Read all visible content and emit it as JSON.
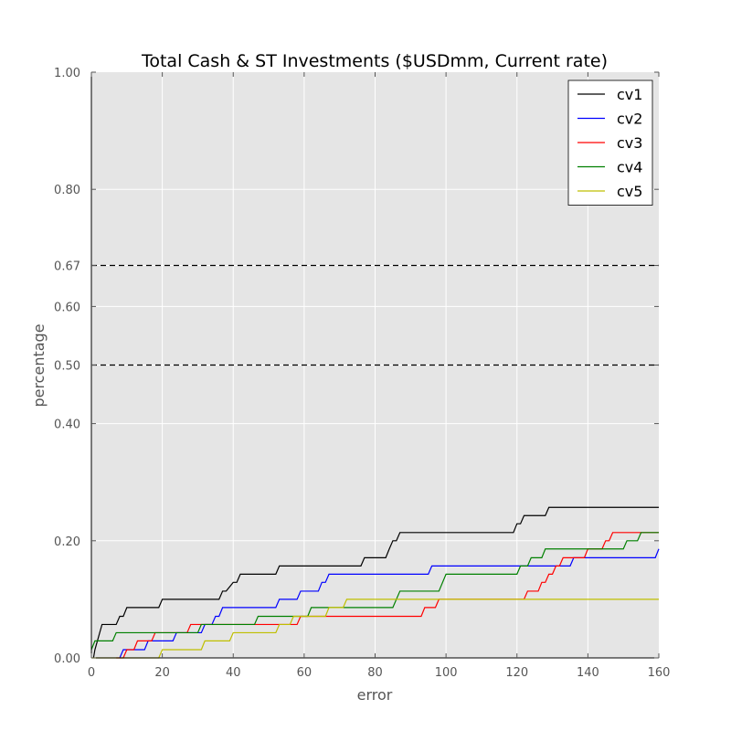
{
  "chart_data": {
    "type": "line",
    "title": "Total Cash & ST Investments  ($USDmm, Current rate)",
    "xlabel": "error",
    "ylabel": "percentage",
    "xlim": [
      0,
      160
    ],
    "ylim": [
      0.0,
      1.0
    ],
    "xticks": [
      0,
      20,
      40,
      60,
      80,
      100,
      120,
      140,
      160
    ],
    "xtick_labels": [
      "0",
      "20",
      "40",
      "60",
      "80",
      "100",
      "120",
      "140",
      "160"
    ],
    "yticks": [
      0.0,
      0.2,
      0.4,
      0.5,
      0.6,
      0.67,
      0.8,
      1.0
    ],
    "ytick_labels": [
      "0.00",
      "0.20",
      "0.40",
      "0.50",
      "0.60",
      "0.67",
      "0.80",
      "1.00"
    ],
    "grid": true,
    "legend_position": "top-right",
    "reference_lines": [
      {
        "y": 0.67,
        "style": "dashed",
        "color": "#000000"
      },
      {
        "y": 0.5,
        "style": "dashed",
        "color": "#000000"
      }
    ],
    "series": [
      {
        "name": "cv1",
        "color": "#000000",
        "points": [
          [
            0.6,
            0.0
          ],
          [
            1.0,
            0.014
          ],
          [
            3.0,
            0.057
          ],
          [
            7.0,
            0.057
          ],
          [
            8.0,
            0.071
          ],
          [
            9.0,
            0.071
          ],
          [
            10.0,
            0.086
          ],
          [
            19.0,
            0.086
          ],
          [
            20.0,
            0.1
          ],
          [
            36.0,
            0.1
          ],
          [
            37.0,
            0.114
          ],
          [
            38.0,
            0.114
          ],
          [
            40.0,
            0.129
          ],
          [
            41.0,
            0.129
          ],
          [
            42.0,
            0.143
          ],
          [
            52.0,
            0.143
          ],
          [
            53.0,
            0.157
          ],
          [
            76.0,
            0.157
          ],
          [
            77.0,
            0.171
          ],
          [
            83.0,
            0.171
          ],
          [
            84.0,
            0.186
          ],
          [
            85.0,
            0.2
          ],
          [
            86.0,
            0.2
          ],
          [
            87.0,
            0.214
          ],
          [
            119.0,
            0.214
          ],
          [
            120.0,
            0.229
          ],
          [
            121.0,
            0.229
          ],
          [
            122.0,
            0.243
          ],
          [
            128.0,
            0.243
          ],
          [
            129.0,
            0.257
          ],
          [
            160.0,
            0.257
          ]
        ]
      },
      {
        "name": "cv2",
        "color": "#0000ff",
        "points": [
          [
            8.0,
            0.0
          ],
          [
            9.0,
            0.014
          ],
          [
            15.0,
            0.014
          ],
          [
            16.0,
            0.029
          ],
          [
            23.0,
            0.029
          ],
          [
            24.0,
            0.043
          ],
          [
            31.0,
            0.043
          ],
          [
            32.0,
            0.057
          ],
          [
            34.0,
            0.057
          ],
          [
            35.0,
            0.071
          ],
          [
            36.0,
            0.071
          ],
          [
            37.0,
            0.086
          ],
          [
            52.0,
            0.086
          ],
          [
            53.0,
            0.1
          ],
          [
            58.0,
            0.1
          ],
          [
            59.0,
            0.114
          ],
          [
            64.0,
            0.114
          ],
          [
            65.0,
            0.129
          ],
          [
            66.0,
            0.129
          ],
          [
            67.0,
            0.143
          ],
          [
            95.0,
            0.143
          ],
          [
            96.0,
            0.157
          ],
          [
            135.0,
            0.157
          ],
          [
            136.0,
            0.171
          ],
          [
            159.0,
            0.171
          ],
          [
            160.0,
            0.186
          ]
        ]
      },
      {
        "name": "cv3",
        "color": "#ff0000",
        "points": [
          [
            7.0,
            0.0
          ],
          [
            9.0,
            0.0
          ],
          [
            10.0,
            0.014
          ],
          [
            12.0,
            0.014
          ],
          [
            13.0,
            0.029
          ],
          [
            17.0,
            0.029
          ],
          [
            18.0,
            0.043
          ],
          [
            27.0,
            0.043
          ],
          [
            28.0,
            0.057
          ],
          [
            58.0,
            0.057
          ],
          [
            59.0,
            0.071
          ],
          [
            93.0,
            0.071
          ],
          [
            94.0,
            0.086
          ],
          [
            97.0,
            0.086
          ],
          [
            98.0,
            0.1
          ],
          [
            122.0,
            0.1
          ],
          [
            123.0,
            0.114
          ],
          [
            126.0,
            0.114
          ],
          [
            127.0,
            0.129
          ],
          [
            128.0,
            0.129
          ],
          [
            129.0,
            0.143
          ],
          [
            130.0,
            0.143
          ],
          [
            131.0,
            0.157
          ],
          [
            132.0,
            0.157
          ],
          [
            133.0,
            0.171
          ],
          [
            139.0,
            0.171
          ],
          [
            140.0,
            0.186
          ],
          [
            144.0,
            0.186
          ],
          [
            145.0,
            0.2
          ],
          [
            146.0,
            0.2
          ],
          [
            147.0,
            0.214
          ],
          [
            160.0,
            0.214
          ]
        ]
      },
      {
        "name": "cv4",
        "color": "#008000",
        "points": [
          [
            0.0,
            0.014
          ],
          [
            1.0,
            0.029
          ],
          [
            6.0,
            0.029
          ],
          [
            7.0,
            0.043
          ],
          [
            30.0,
            0.043
          ],
          [
            31.0,
            0.057
          ],
          [
            46.0,
            0.057
          ],
          [
            47.0,
            0.071
          ],
          [
            61.0,
            0.071
          ],
          [
            62.0,
            0.086
          ],
          [
            85.0,
            0.086
          ],
          [
            87.0,
            0.114
          ],
          [
            98.0,
            0.114
          ],
          [
            100.0,
            0.143
          ],
          [
            120.0,
            0.143
          ],
          [
            121.0,
            0.157
          ],
          [
            123.0,
            0.157
          ],
          [
            124.0,
            0.171
          ],
          [
            127.0,
            0.171
          ],
          [
            128.0,
            0.186
          ],
          [
            150.0,
            0.186
          ],
          [
            151.0,
            0.2
          ],
          [
            154.0,
            0.2
          ],
          [
            155.0,
            0.214
          ],
          [
            160.0,
            0.214
          ]
        ]
      },
      {
        "name": "cv5",
        "color": "#bfbf00",
        "points": [
          [
            0.0,
            0.0
          ],
          [
            19.0,
            0.0
          ],
          [
            20.0,
            0.014
          ],
          [
            31.0,
            0.014
          ],
          [
            32.0,
            0.029
          ],
          [
            39.0,
            0.029
          ],
          [
            40.0,
            0.043
          ],
          [
            52.0,
            0.043
          ],
          [
            53.0,
            0.057
          ],
          [
            56.0,
            0.057
          ],
          [
            57.0,
            0.071
          ],
          [
            66.0,
            0.071
          ],
          [
            67.0,
            0.086
          ],
          [
            71.0,
            0.086
          ],
          [
            72.0,
            0.1
          ],
          [
            160.0,
            0.1
          ]
        ]
      }
    ]
  }
}
